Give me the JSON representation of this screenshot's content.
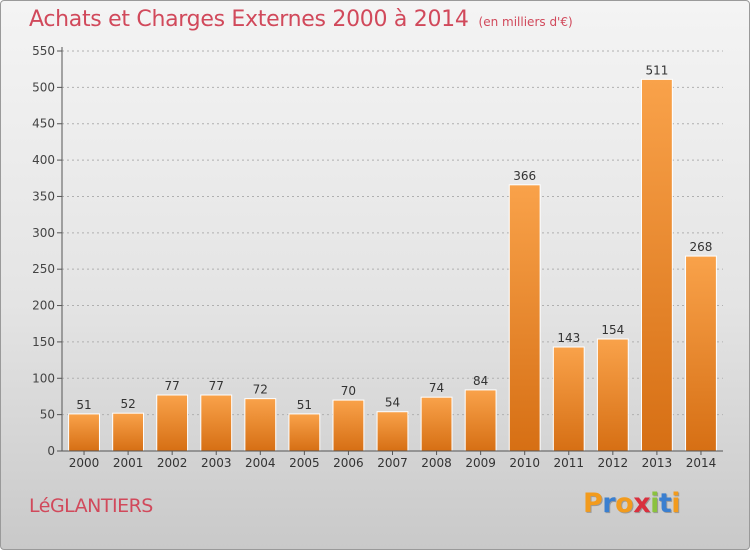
{
  "header": {
    "title": "Achats et Charges Externes 2000 à 2014",
    "unit": "(en milliers d'€)"
  },
  "commune": "LéGLANTIERS",
  "logo": {
    "text": "Proxiti",
    "letters": [
      {
        "ch": "P",
        "color": "#f29b1d"
      },
      {
        "ch": "r",
        "color": "#3a7fd0"
      },
      {
        "ch": "o",
        "color": "#f29b1d"
      },
      {
        "ch": "x",
        "color": "#d9303e"
      },
      {
        "ch": "i",
        "color": "#8bc23f"
      },
      {
        "ch": "t",
        "color": "#3a7fd0"
      },
      {
        "ch": "i",
        "color": "#f29b1d"
      }
    ]
  },
  "colors": {
    "title": "#d1495b",
    "bar_light": "#f9a24a",
    "bar_dark": "#d66f14",
    "axis": "#555555",
    "grid": "#b0b0b0"
  },
  "chart_data": {
    "type": "bar",
    "categories": [
      "2000",
      "2001",
      "2002",
      "2003",
      "2004",
      "2005",
      "2006",
      "2007",
      "2008",
      "2009",
      "2010",
      "2011",
      "2012",
      "2013",
      "2014"
    ],
    "values": [
      51,
      52,
      77,
      77,
      72,
      51,
      70,
      54,
      74,
      84,
      366,
      143,
      154,
      511,
      268
    ],
    "yticks": [
      0,
      50,
      100,
      150,
      200,
      250,
      300,
      350,
      400,
      450,
      500,
      550
    ],
    "ylim": [
      0,
      550
    ],
    "grid": true,
    "data_labels": true
  }
}
